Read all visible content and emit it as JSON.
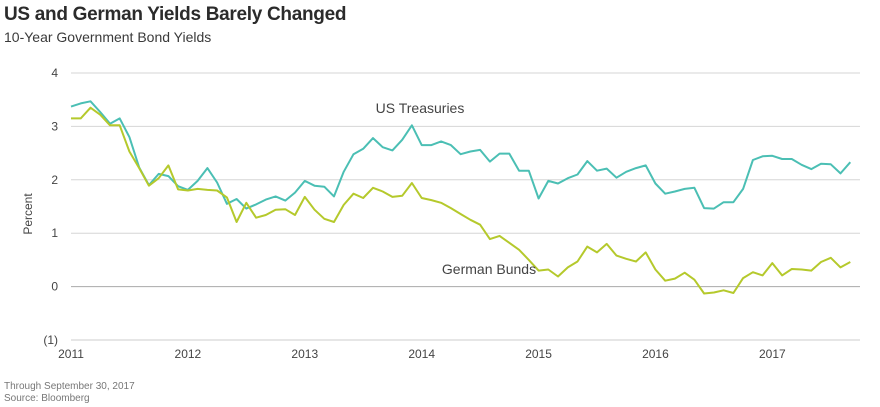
{
  "chart_data": {
    "type": "line",
    "title": "US and German Yields Barely Changed",
    "subtitle": "10-Year Government Bond Yields",
    "xlabel": "",
    "ylabel": "Percent",
    "ylim": [
      -1,
      4
    ],
    "yticks": [
      4,
      3,
      2,
      1,
      0,
      -1
    ],
    "ytick_labels": [
      "4",
      "3",
      "2",
      "1",
      "0",
      "(1)"
    ],
    "xlim": [
      2011.0,
      2017.75
    ],
    "xticks": [
      2011,
      2012,
      2013,
      2014,
      2015,
      2016,
      2017
    ],
    "xtick_labels": [
      "2011",
      "2012",
      "2013",
      "2014",
      "2015",
      "2016",
      "2017"
    ],
    "grid": true,
    "legend": "inline labels",
    "x_start": "2011-01",
    "x_step": "monthly",
    "series": [
      {
        "name": "US Treasuries",
        "color": "#4bbfb4",
        "label_anchor_index": 30,
        "values": [
          3.37,
          3.43,
          3.47,
          3.27,
          3.05,
          3.15,
          2.8,
          2.23,
          1.9,
          2.11,
          2.07,
          1.88,
          1.81,
          1.98,
          2.22,
          1.95,
          1.55,
          1.64,
          1.46,
          1.54,
          1.63,
          1.69,
          1.61,
          1.76,
          1.98,
          1.89,
          1.87,
          1.69,
          2.15,
          2.48,
          2.58,
          2.78,
          2.61,
          2.55,
          2.75,
          3.02,
          2.65,
          2.65,
          2.72,
          2.65,
          2.48,
          2.53,
          2.56,
          2.34,
          2.49,
          2.49,
          2.17,
          2.17,
          1.65,
          1.98,
          1.93,
          2.03,
          2.1,
          2.35,
          2.17,
          2.21,
          2.04,
          2.15,
          2.22,
          2.27,
          1.93,
          1.74,
          1.78,
          1.83,
          1.85,
          1.47,
          1.46,
          1.58,
          1.58,
          1.83,
          2.37,
          2.44,
          2.45,
          2.39,
          2.39,
          2.28,
          2.2,
          2.3,
          2.29,
          2.12,
          2.33
        ]
      },
      {
        "name": "German Bunds",
        "color": "#b5c92c",
        "label_anchor_index": 44,
        "values": [
          3.15,
          3.15,
          3.35,
          3.22,
          3.02,
          3.02,
          2.53,
          2.22,
          1.89,
          2.03,
          2.27,
          1.82,
          1.8,
          1.83,
          1.81,
          1.8,
          1.67,
          1.21,
          1.57,
          1.29,
          1.34,
          1.44,
          1.45,
          1.34,
          1.68,
          1.44,
          1.27,
          1.21,
          1.53,
          1.74,
          1.66,
          1.85,
          1.78,
          1.68,
          1.7,
          1.94,
          1.66,
          1.62,
          1.57,
          1.47,
          1.36,
          1.25,
          1.16,
          0.89,
          0.95,
          0.82,
          0.69,
          0.5,
          0.3,
          0.32,
          0.19,
          0.36,
          0.47,
          0.75,
          0.64,
          0.8,
          0.58,
          0.52,
          0.47,
          0.64,
          0.32,
          0.11,
          0.15,
          0.26,
          0.13,
          -0.13,
          -0.11,
          -0.07,
          -0.12,
          0.16,
          0.27,
          0.21,
          0.44,
          0.21,
          0.33,
          0.32,
          0.3,
          0.46,
          0.54,
          0.36,
          0.46
        ]
      }
    ],
    "footnotes": [
      "Through September 30, 2017",
      "Source: Bloomberg"
    ]
  }
}
